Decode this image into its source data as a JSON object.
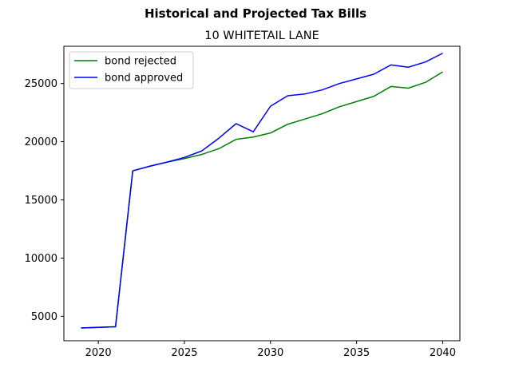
{
  "chart_data": {
    "type": "line",
    "title": "Historical and Projected Tax Bills",
    "subtitle": "10 WHITETAIL LANE",
    "xlabel": "",
    "ylabel": "",
    "xlim": [
      2018,
      2041
    ],
    "ylim": [
      2900,
      28200
    ],
    "x_ticks": [
      2020,
      2025,
      2030,
      2035,
      2040
    ],
    "y_ticks": [
      5000,
      10000,
      15000,
      20000,
      25000
    ],
    "grid": false,
    "legend_position": "top-left",
    "x": [
      2019,
      2020,
      2021,
      2022,
      2023,
      2024,
      2025,
      2026,
      2027,
      2028,
      2029,
      2030,
      2031,
      2032,
      2033,
      2034,
      2035,
      2036,
      2037,
      2038,
      2039,
      2040
    ],
    "series": [
      {
        "name": "bond rejected",
        "color": "#008000",
        "values": [
          4000,
          4050,
          4100,
          17500,
          17900,
          18250,
          18550,
          18900,
          19400,
          20200,
          20400,
          20750,
          21500,
          21950,
          22400,
          23000,
          23450,
          23900,
          24750,
          24600,
          25100,
          26000
        ]
      },
      {
        "name": "bond approved",
        "color": "#0000ff",
        "values": [
          4000,
          4050,
          4100,
          17500,
          17900,
          18250,
          18650,
          19200,
          20300,
          21550,
          20850,
          23050,
          23950,
          24100,
          24450,
          25000,
          25400,
          25800,
          26600,
          26400,
          26850,
          27600
        ]
      }
    ]
  }
}
